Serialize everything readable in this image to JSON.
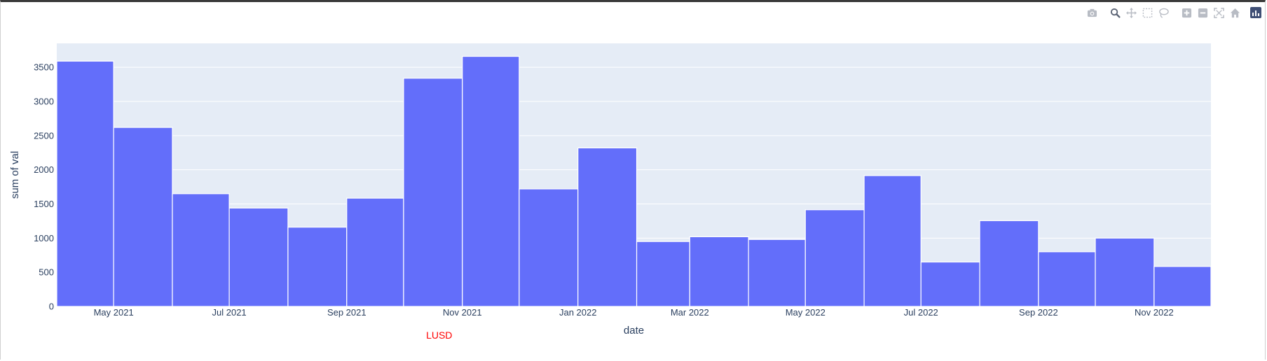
{
  "colors": {
    "plot_bg": "#e5ecf6",
    "bar": "#636efa",
    "grid": "#ffffff",
    "text": "#2a3f5f",
    "annotation": "#ff0000",
    "modebar_icon": "#b8bcc4",
    "modebar_active": "#5a6374"
  },
  "modebar": [
    "camera-icon",
    "zoom-icon",
    "pan-icon",
    "box-select-icon",
    "lasso-icon",
    "zoom-in-icon",
    "zoom-out-icon",
    "autoscale-icon",
    "home-icon",
    "plotly-logo-icon"
  ],
  "annotation": {
    "text": "LUSD",
    "date": "2021-11-01"
  },
  "chart_data": {
    "type": "bar",
    "xlabel": "date",
    "ylabel": "sum of val",
    "ylim": [
      0,
      3850
    ],
    "yticks": [
      0,
      500,
      1000,
      1500,
      2000,
      2500,
      3000,
      3500
    ],
    "xrange": [
      "2021-04-01",
      "2022-12-01"
    ],
    "xticks": [
      {
        "date": "2021-05-01",
        "label": "May 2021"
      },
      {
        "date": "2021-07-01",
        "label": "Jul 2021"
      },
      {
        "date": "2021-09-01",
        "label": "Sep 2021"
      },
      {
        "date": "2021-11-01",
        "label": "Nov 2021"
      },
      {
        "date": "2022-01-01",
        "label": "Jan 2022"
      },
      {
        "date": "2022-03-01",
        "label": "Mar 2022"
      },
      {
        "date": "2022-05-01",
        "label": "May 2022"
      },
      {
        "date": "2022-07-01",
        "label": "Jul 2022"
      },
      {
        "date": "2022-09-01",
        "label": "Sep 2022"
      },
      {
        "date": "2022-11-01",
        "label": "Nov 2022"
      }
    ],
    "grid": true,
    "bars": [
      {
        "start": "2021-04-01",
        "end": "2021-05-01",
        "value": 3590
      },
      {
        "start": "2021-05-01",
        "end": "2021-06-01",
        "value": 2620
      },
      {
        "start": "2021-06-01",
        "end": "2021-07-01",
        "value": 1650
      },
      {
        "start": "2021-07-01",
        "end": "2021-08-01",
        "value": 1440
      },
      {
        "start": "2021-08-01",
        "end": "2021-09-01",
        "value": 1160
      },
      {
        "start": "2021-09-01",
        "end": "2021-10-01",
        "value": 1585
      },
      {
        "start": "2021-10-01",
        "end": "2021-11-01",
        "value": 3340
      },
      {
        "start": "2021-11-01",
        "end": "2021-12-01",
        "value": 3660
      },
      {
        "start": "2021-12-01",
        "end": "2022-01-01",
        "value": 1720
      },
      {
        "start": "2022-01-01",
        "end": "2022-02-01",
        "value": 2320
      },
      {
        "start": "2022-02-01",
        "end": "2022-03-01",
        "value": 950
      },
      {
        "start": "2022-03-01",
        "end": "2022-04-01",
        "value": 1020
      },
      {
        "start": "2022-04-01",
        "end": "2022-05-01",
        "value": 980
      },
      {
        "start": "2022-05-01",
        "end": "2022-06-01",
        "value": 1415
      },
      {
        "start": "2022-06-01",
        "end": "2022-07-01",
        "value": 1915
      },
      {
        "start": "2022-07-01",
        "end": "2022-08-01",
        "value": 650
      },
      {
        "start": "2022-08-01",
        "end": "2022-09-01",
        "value": 1255
      },
      {
        "start": "2022-09-01",
        "end": "2022-10-01",
        "value": 800
      },
      {
        "start": "2022-10-01",
        "end": "2022-11-01",
        "value": 1000
      },
      {
        "start": "2022-11-01",
        "end": "2022-12-01",
        "value": 585
      }
    ]
  }
}
